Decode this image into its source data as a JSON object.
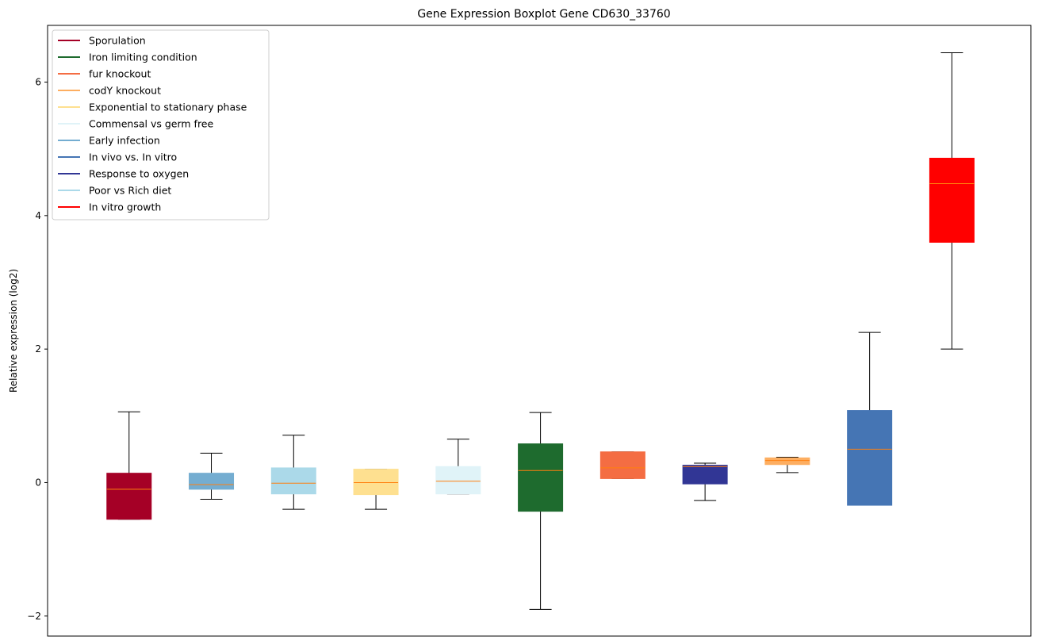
{
  "chart_data": {
    "type": "boxplot",
    "title": "Gene Expression Boxplot Gene CD630_33760",
    "xlabel": "",
    "ylabel": "Relative expression (log2)",
    "ylim": [
      -2.3,
      6.85
    ],
    "yticks": [
      -2,
      0,
      2,
      4,
      6
    ],
    "ytick_labels": [
      "−2",
      "0",
      "2",
      "4",
      "6"
    ],
    "median_color": "#ff7f0e",
    "legend": {
      "position": "top-left",
      "entries": [
        {
          "label": "Sporulation",
          "color": "#a50026"
        },
        {
          "label": "Iron limiting condition",
          "color": "#1e6b2e"
        },
        {
          "label": "fur knockout",
          "color": "#f46d43"
        },
        {
          "label": "codY knockout",
          "color": "#fdae61"
        },
        {
          "label": "Exponential to stationary phase",
          "color": "#fee090"
        },
        {
          "label": "Commensal vs germ free",
          "color": "#e0f3f8"
        },
        {
          "label": "Early infection",
          "color": "#74add1"
        },
        {
          "label": "In vivo vs. In vitro",
          "color": "#4575b4"
        },
        {
          "label": "Response to oxygen",
          "color": "#313695"
        },
        {
          "label": "Poor vs Rich diet",
          "color": "#abd9e9"
        },
        {
          "label": "In vitro growth",
          "color": "#ff0000"
        }
      ]
    },
    "boxes": [
      {
        "name": "Sporulation",
        "color": "#a50026",
        "whisker_low": -0.55,
        "q1": -0.55,
        "median": -0.1,
        "q3": 0.14,
        "whisker_high": 1.06
      },
      {
        "name": "Early infection",
        "color": "#74add1",
        "whisker_low": -0.25,
        "q1": -0.1,
        "median": -0.03,
        "q3": 0.14,
        "whisker_high": 0.44
      },
      {
        "name": "Poor vs Rich diet",
        "color": "#abd9e9",
        "whisker_low": -0.4,
        "q1": -0.17,
        "median": -0.01,
        "q3": 0.22,
        "whisker_high": 0.71
      },
      {
        "name": "Exponential to stationary phase",
        "color": "#fee090",
        "whisker_low": -0.4,
        "q1": -0.18,
        "median": 0.0,
        "q3": 0.2,
        "whisker_high": 0.2
      },
      {
        "name": "Commensal vs germ free",
        "color": "#e0f3f8",
        "whisker_low": -0.17,
        "q1": -0.17,
        "median": 0.02,
        "q3": 0.24,
        "whisker_high": 0.65
      },
      {
        "name": "Iron limiting condition",
        "color": "#1e6b2e",
        "whisker_low": -1.9,
        "q1": -0.43,
        "median": 0.18,
        "q3": 0.58,
        "whisker_high": 1.05
      },
      {
        "name": "fur knockout",
        "color": "#f46d43",
        "whisker_low": 0.06,
        "q1": 0.06,
        "median": 0.22,
        "q3": 0.46,
        "whisker_high": 0.46
      },
      {
        "name": "Response to oxygen",
        "color": "#313695",
        "whisker_low": -0.27,
        "q1": -0.02,
        "median": 0.24,
        "q3": 0.26,
        "whisker_high": 0.29
      },
      {
        "name": "codY knockout",
        "color": "#fdae61",
        "whisker_low": 0.15,
        "q1": 0.27,
        "median": 0.33,
        "q3": 0.37,
        "whisker_high": 0.38
      },
      {
        "name": "In vivo vs. In vitro",
        "color": "#4575b4",
        "whisker_low": -0.34,
        "q1": -0.34,
        "median": 0.5,
        "q3": 1.08,
        "whisker_high": 2.25
      },
      {
        "name": "In vitro growth",
        "color": "#ff0000",
        "whisker_low": 2.0,
        "q1": 3.6,
        "median": 4.48,
        "q3": 4.86,
        "whisker_high": 6.44
      }
    ]
  }
}
